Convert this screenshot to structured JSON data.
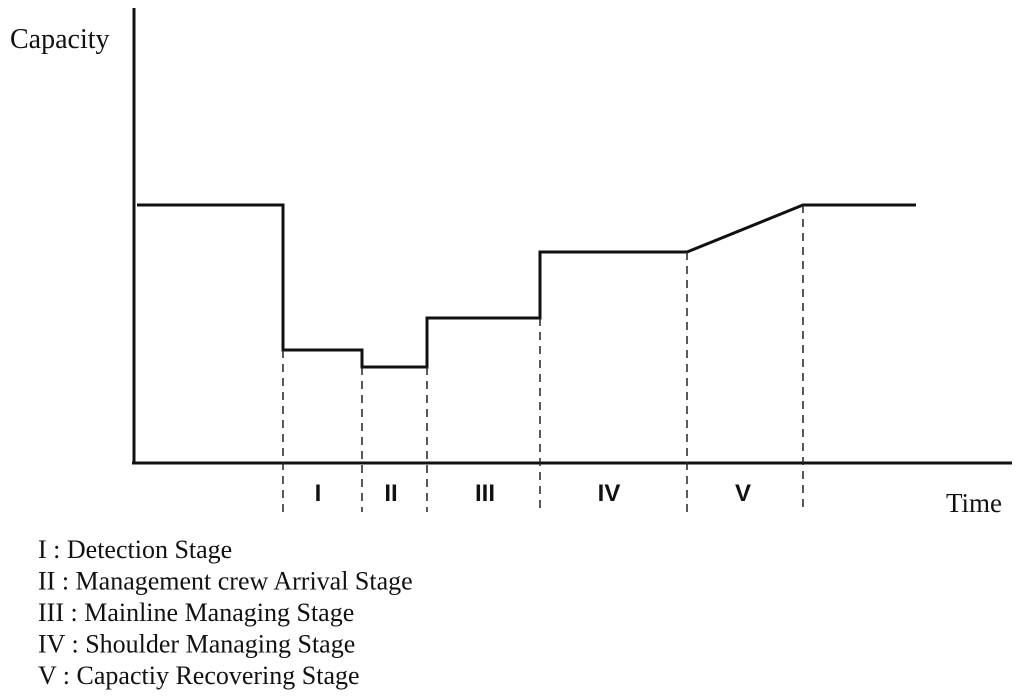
{
  "axes": {
    "y_label": "Capacity",
    "x_label": "Time"
  },
  "stages": [
    "I",
    "II",
    "III",
    "IV",
    "V"
  ],
  "legend": [
    "I : Detection Stage",
    "II : Management crew Arrival Stage",
    "III : Mainline Managing Stage",
    "IV : Shoulder Managing Stage",
    "V : Capactiy Recovering Stage"
  ]
}
